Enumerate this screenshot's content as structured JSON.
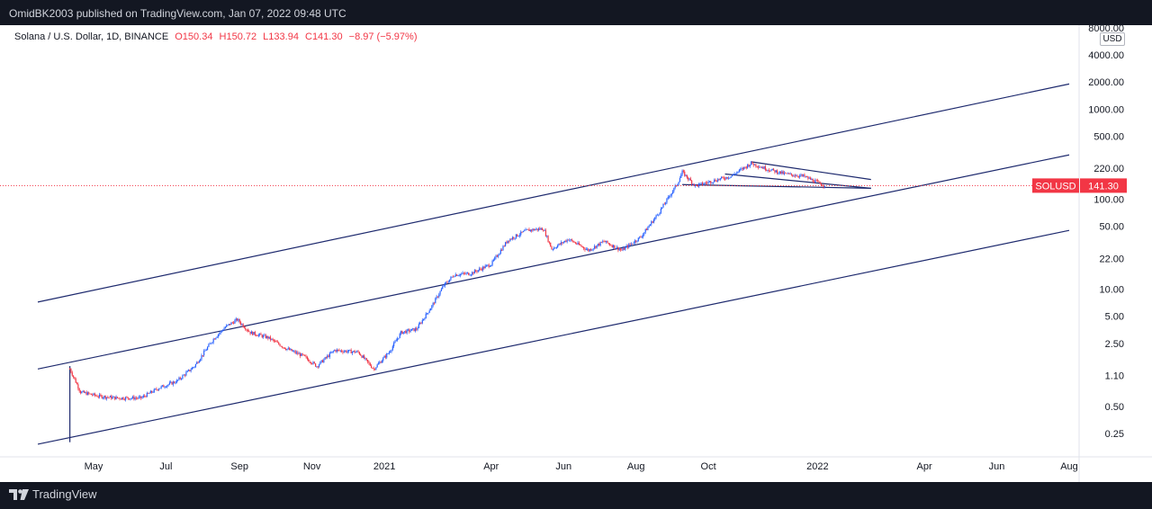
{
  "header": {
    "published": "OmidBK2003 published on TradingView.com, Jan 07, 2022 09:48 UTC"
  },
  "legend": {
    "symbol": "Solana / U.S. Dollar, 1D, BINANCE",
    "open": "O150.34",
    "high": "H150.72",
    "low": "L133.94",
    "close": "C141.30",
    "change": "−8.97 (−5.97%)"
  },
  "currency": "USD",
  "price_tag": {
    "symbol": "SOLUSD",
    "price": "141.30"
  },
  "footer": {
    "brand": "TradingView"
  },
  "colors": {
    "up": "#2962ff",
    "down": "#f23645",
    "lines": "#1e2a6e",
    "background": "#131722"
  },
  "chart_data": {
    "type": "line",
    "scale": "log",
    "y_ticks": [
      0.25,
      0.5,
      1.1,
      2.5,
      5.0,
      10.0,
      22.0,
      50.0,
      100.0,
      220.0,
      500.0,
      1000.0,
      2000.0,
      4000.0,
      8000.0
    ],
    "y_tick_labels": [
      "0.25",
      "0.50",
      "1.10",
      "2.50",
      "5.00",
      "10.00",
      "22.00",
      "50.00",
      "100.00",
      "220.00",
      "500.00",
      "1000.00",
      "2000.00",
      "4000.00",
      "8000.00"
    ],
    "x_ticks": [
      "2020-05-01",
      "2020-07-01",
      "2020-09-01",
      "2020-11-01",
      "2021-01-01",
      "2021-04-01",
      "2021-06-01",
      "2021-08-01",
      "2021-10-01",
      "2022-01-01",
      "2022-04-01",
      "2022-06-01",
      "2022-08-01"
    ],
    "x_tick_labels": [
      "May",
      "Jul",
      "Sep",
      "Nov",
      "2021",
      "Apr",
      "Jun",
      "Aug",
      "Oct",
      "2022",
      "Apr",
      "Jun",
      "Aug"
    ],
    "last_price": 141.3,
    "series": [
      {
        "values": [
          [
            "2020-04-11",
            1.3
          ],
          [
            "2020-04-20",
            0.72
          ],
          [
            "2020-05-05",
            0.65
          ],
          [
            "2020-05-20",
            0.62
          ],
          [
            "2020-06-10",
            0.62
          ],
          [
            "2020-06-25",
            0.8
          ],
          [
            "2020-07-10",
            0.95
          ],
          [
            "2020-07-25",
            1.4
          ],
          [
            "2020-08-10",
            2.8
          ],
          [
            "2020-08-20",
            3.8
          ],
          [
            "2020-08-30",
            4.6
          ],
          [
            "2020-09-10",
            3.3
          ],
          [
            "2020-09-25",
            2.9
          ],
          [
            "2020-10-10",
            2.2
          ],
          [
            "2020-10-25",
            1.8
          ],
          [
            "2020-11-05",
            1.4
          ],
          [
            "2020-11-20",
            2.1
          ],
          [
            "2020-12-10",
            2.0
          ],
          [
            "2020-12-23",
            1.3
          ],
          [
            "2021-01-05",
            2.0
          ],
          [
            "2021-01-15",
            3.3
          ],
          [
            "2021-01-28",
            3.6
          ],
          [
            "2021-02-10",
            6.5
          ],
          [
            "2021-02-20",
            11.0
          ],
          [
            "2021-03-01",
            14.5
          ],
          [
            "2021-03-15",
            15.0
          ],
          [
            "2021-04-01",
            19.0
          ],
          [
            "2021-04-15",
            35.0
          ],
          [
            "2021-05-01",
            45.0
          ],
          [
            "2021-05-15",
            47.0
          ],
          [
            "2021-05-22",
            28.0
          ],
          [
            "2021-06-05",
            36.0
          ],
          [
            "2021-06-22",
            27.0
          ],
          [
            "2021-07-05",
            34.0
          ],
          [
            "2021-07-20",
            27.0
          ],
          [
            "2021-08-05",
            38.0
          ],
          [
            "2021-08-20",
            70.0
          ],
          [
            "2021-09-05",
            150.0
          ],
          [
            "2021-09-09",
            200.0
          ],
          [
            "2021-09-20",
            140.0
          ],
          [
            "2021-10-05",
            160.0
          ],
          [
            "2021-10-20",
            180.0
          ],
          [
            "2021-11-06",
            250.0
          ],
          [
            "2021-11-20",
            215.0
          ],
          [
            "2021-12-05",
            190.0
          ],
          [
            "2021-12-20",
            180.0
          ],
          [
            "2022-01-07",
            141.3
          ]
        ]
      }
    ],
    "trendlines": [
      {
        "from": [
          "2020-03-15",
          7.2
        ],
        "to": [
          "2022-08-01",
          1900
        ]
      },
      {
        "from": [
          "2020-03-15",
          1.3
        ],
        "to": [
          "2022-08-01",
          310
        ]
      },
      {
        "from": [
          "2020-03-15",
          0.19
        ],
        "to": [
          "2022-08-01",
          45
        ]
      },
      {
        "from": [
          "2021-09-09",
          145
        ],
        "to": [
          "2022-02-15",
          132
        ]
      },
      {
        "from": [
          "2021-11-06",
          260
        ],
        "to": [
          "2022-02-15",
          165
        ]
      },
      {
        "from": [
          "2021-10-15",
          190
        ],
        "to": [
          "2022-02-15",
          132
        ]
      },
      {
        "from": [
          "2020-04-11",
          1.4
        ],
        "to": [
          "2020-04-11",
          0.2
        ]
      }
    ]
  }
}
